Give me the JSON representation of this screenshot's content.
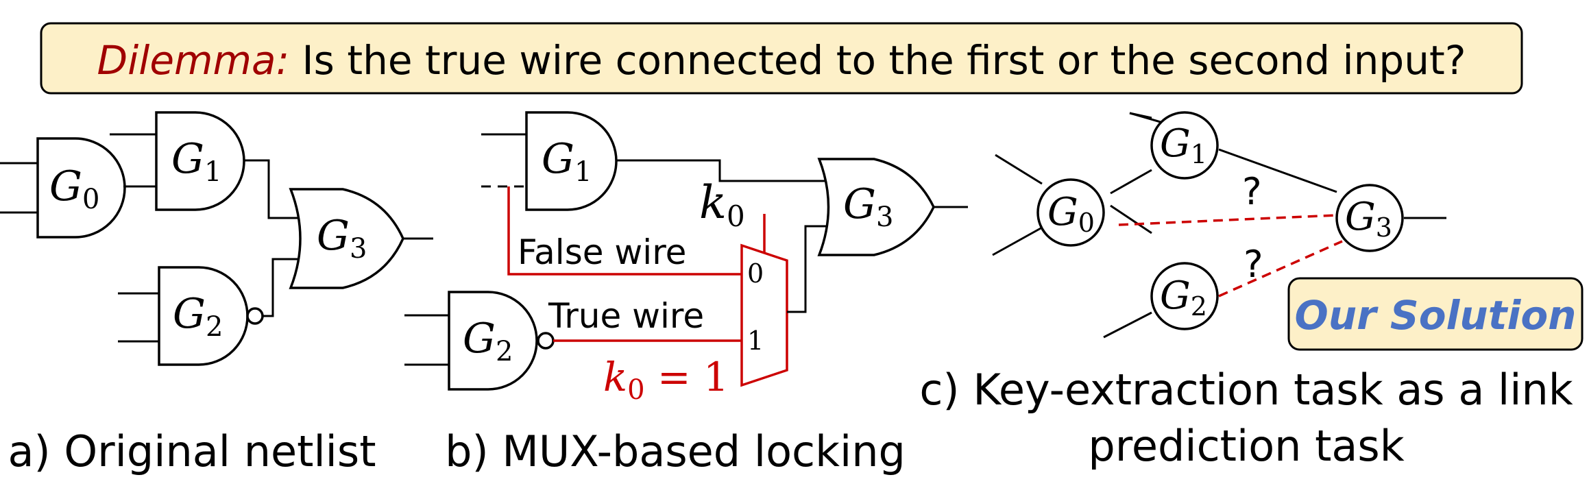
{
  "banner": {
    "prefix": "Dilemma:",
    "question": " Is the true wire connected to the first or the second input?",
    "prefix_color": "#a00000",
    "background": "#fdf0c8"
  },
  "panel_a": {
    "gates": {
      "g0": "G",
      "g0_sub": "0",
      "g1": "G",
      "g1_sub": "1",
      "g2": "G",
      "g2_sub": "2",
      "g3": "G",
      "g3_sub": "3"
    },
    "caption": "a) Original netlist"
  },
  "panel_b": {
    "gates": {
      "g1": "G",
      "g1_sub": "1",
      "g2": "G",
      "g2_sub": "2",
      "g3": "G",
      "g3_sub": "3"
    },
    "key_label": "k",
    "key_sub": "0",
    "false_wire": "False wire",
    "true_wire": "True wire",
    "mux_in0": "0",
    "mux_in1": "1",
    "key_value_k": "k",
    "key_value_sub": "0",
    "key_value_rest": " = 1",
    "red_color": "#cc0000",
    "caption": "b) MUX-based locking"
  },
  "panel_c": {
    "nodes": {
      "g0": "G",
      "g0_sub": "0",
      "g1": "G",
      "g1_sub": "1",
      "g2": "G",
      "g2_sub": "2",
      "g3": "G",
      "g3_sub": "3"
    },
    "question_mark_1": "?",
    "question_mark_2": "?",
    "caption_line1": "c) Key-extraction task as a link",
    "caption_line2": "prediction task"
  },
  "solution_box": {
    "label": "Our Solution",
    "text_color": "#4a72c4",
    "background": "#fdf0c8"
  }
}
